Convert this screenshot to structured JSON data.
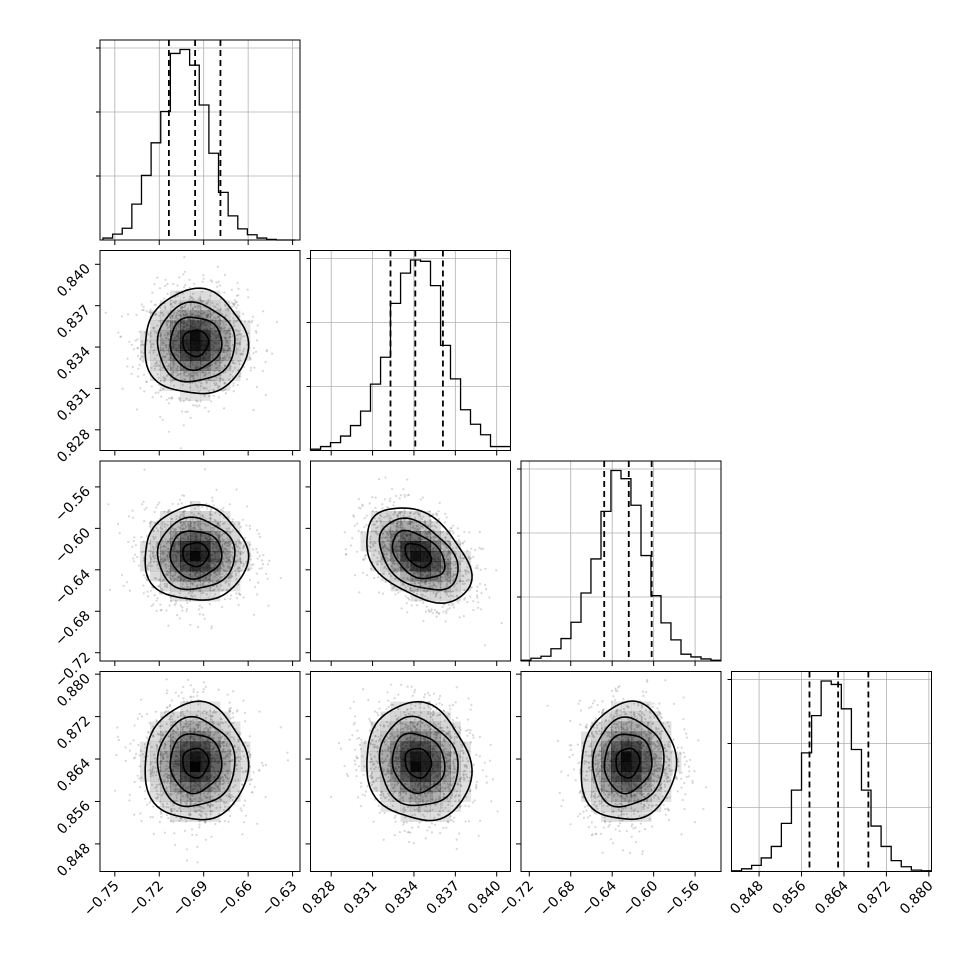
{
  "chart_data": {
    "type": "corner",
    "parameters": [
      {
        "id": "p1",
        "range": [
          -0.76,
          -0.625
        ],
        "ticks": [
          -0.75,
          -0.72,
          -0.69,
          -0.66,
          -0.63
        ],
        "tick_labels": [
          "−0.75",
          "−0.72",
          "−0.69",
          "−0.66",
          "−0.63"
        ],
        "quantiles": [
          -0.7135,
          -0.6958,
          -0.6787
        ],
        "histogram": {
          "bins": [
            -0.758,
            -0.7515,
            -0.745,
            -0.7385,
            -0.732,
            -0.7255,
            -0.719,
            -0.7125,
            -0.706,
            -0.6995,
            -0.693,
            -0.6865,
            -0.68,
            -0.6735,
            -0.667,
            -0.6605,
            -0.654,
            -0.6475,
            -0.641,
            -0.6345,
            -0.628
          ],
          "counts": [
            3,
            9,
            18,
            55,
            99,
            149,
            197,
            286,
            292,
            268,
            207,
            133,
            73,
            37,
            17,
            8,
            3,
            1,
            0,
            0
          ]
        }
      },
      {
        "id": "p2",
        "range": [
          0.8265,
          0.841
        ],
        "ticks": [
          0.828,
          0.831,
          0.834,
          0.837,
          0.84
        ],
        "tick_labels": [
          "0.828",
          "0.831",
          "0.834",
          "0.837",
          "0.840"
        ],
        "quantiles": [
          0.8323,
          0.8341,
          0.8361
        ],
        "histogram": {
          "bins": [
            0.8265,
            0.82723,
            0.82795,
            0.82868,
            0.8294,
            0.83013,
            0.83085,
            0.83158,
            0.8323,
            0.83303,
            0.83375,
            0.83448,
            0.8352,
            0.83593,
            0.83665,
            0.83738,
            0.8381,
            0.83883,
            0.83955,
            0.84028,
            0.841
          ],
          "counts": [
            2,
            6,
            12,
            22,
            38,
            60,
            101,
            142,
            224,
            270,
            290,
            288,
            251,
            160,
            109,
            62,
            40,
            24,
            6,
            6
          ]
        }
      },
      {
        "id": "p3",
        "range": [
          -0.728,
          -0.535
        ],
        "ticks": [
          -0.72,
          -0.68,
          -0.64,
          -0.6,
          -0.56
        ],
        "tick_labels": [
          "−0.72",
          "−0.68",
          "−0.64",
          "−0.60",
          "−0.56"
        ],
        "y_tick_labels": [
          "−0.72",
          "−0.68",
          "−0.64",
          "−0.60",
          "−0.56"
        ],
        "quantiles": [
          -0.6477,
          -0.624,
          -0.6019
        ],
        "histogram": {
          "bins": [
            -0.728,
            -0.7184,
            -0.7087,
            -0.6991,
            -0.6894,
            -0.6798,
            -0.6701,
            -0.6605,
            -0.6508,
            -0.6412,
            -0.6315,
            -0.6219,
            -0.6122,
            -0.6026,
            -0.5929,
            -0.5833,
            -0.5736,
            -0.564,
            -0.5543,
            -0.5447,
            -0.535
          ],
          "counts": [
            1,
            4,
            7,
            18,
            33,
            57,
            100,
            150,
            220,
            280,
            268,
            229,
            155,
            96,
            56,
            31,
            10,
            6,
            3,
            1
          ]
        }
      },
      {
        "id": "p4",
        "range": [
          0.8428,
          0.8805
        ],
        "ticks": [
          0.848,
          0.856,
          0.864,
          0.872,
          0.88
        ],
        "tick_labels": [
          "0.848",
          "0.856",
          "0.864",
          "0.872",
          "0.880"
        ],
        "quantiles": [
          0.8575,
          0.8629,
          0.8686
        ],
        "histogram": {
          "bins": [
            0.8428,
            0.8447,
            0.8466,
            0.8484,
            0.8503,
            0.8522,
            0.8541,
            0.856,
            0.8579,
            0.8597,
            0.8616,
            0.8635,
            0.8654,
            0.8673,
            0.8691,
            0.871,
            0.8729,
            0.8748,
            0.8767,
            0.8786,
            0.8805
          ],
          "counts": [
            1,
            4,
            9,
            20,
            37,
            71,
            120,
            175,
            230,
            281,
            276,
            240,
            180,
            120,
            67,
            37,
            16,
            7,
            2,
            1
          ]
        }
      }
    ],
    "pairs": [
      {
        "x": "p1",
        "y": "p2",
        "center": [
          -0.6955,
          0.8343
        ],
        "corr": 0.0,
        "peak": [
          -0.695,
          0.8346
        ]
      },
      {
        "x": "p1",
        "y": "p3",
        "center": [
          -0.6955,
          -0.625
        ],
        "corr": 0.0,
        "peak": [
          -0.694,
          -0.627
        ]
      },
      {
        "x": "p2",
        "y": "p3",
        "center": [
          0.8343,
          -0.626
        ],
        "corr": -0.4,
        "peak": [
          0.8344,
          -0.622
        ]
      },
      {
        "x": "p1",
        "y": "p4",
        "center": [
          -0.6955,
          0.8633
        ],
        "corr": 0.0,
        "peak": [
          -0.6955,
          0.8628
        ]
      },
      {
        "x": "p2",
        "y": "p4",
        "center": [
          0.8343,
          0.8633
        ],
        "corr": -0.1,
        "peak": [
          0.8341,
          0.8632
        ]
      },
      {
        "x": "p3",
        "y": "p4",
        "center": [
          -0.625,
          0.8633
        ],
        "corr": 0.05,
        "peak": [
          -0.626,
          0.8638
        ]
      }
    ],
    "contour_levels_sigma": [
      0.5,
      1.0,
      1.5,
      2.0
    ],
    "grid": true,
    "colors": {
      "hist": "#000000",
      "points": "#8c8c8c",
      "density": "#000000"
    }
  }
}
